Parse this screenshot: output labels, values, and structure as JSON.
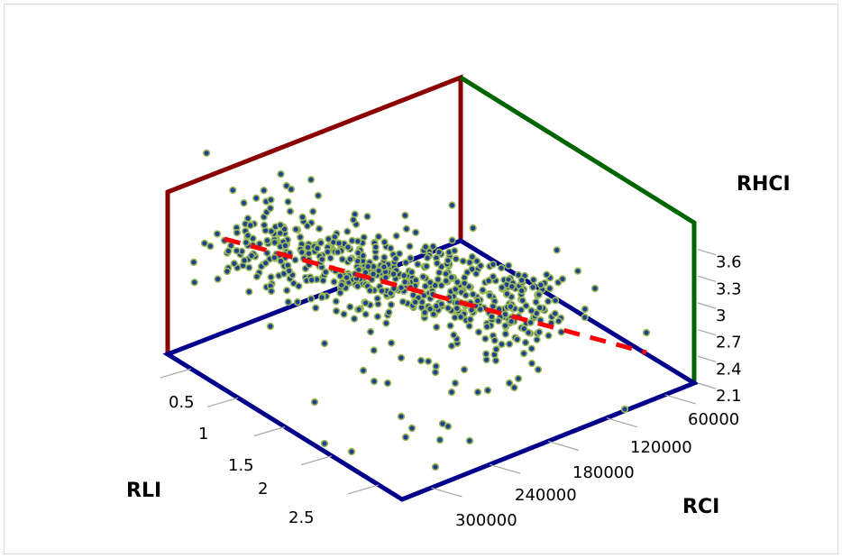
{
  "chart_data": {
    "type": "scatter",
    "axes": {
      "x": {
        "title": "RLI",
        "ticks": [
          "0.5",
          "1",
          "1.5",
          "2",
          "2.5"
        ],
        "range": [
          0.3,
          2.6
        ]
      },
      "y": {
        "title": "RCI",
        "ticks": [
          "60000",
          "120000",
          "180000",
          "240000",
          "300000"
        ],
        "range": [
          20000,
          320000
        ]
      },
      "z": {
        "title": "RHCI",
        "ticks": [
          "2.1",
          "2.4",
          "2.7",
          "3",
          "3.3",
          "3.6"
        ],
        "range": [
          2.1,
          3.9
        ]
      }
    },
    "trendline": {
      "style": "dashed",
      "color": "#ff0000"
    },
    "colors": {
      "left_wall": "#8b0000",
      "right_wall": "#006400",
      "floor": "#00008b",
      "point_fill": "#1f3f8f",
      "point_stroke": "#9bbb59",
      "tick_line": "#a6a6a6"
    },
    "points_note": "point cloud",
    "grid": false,
    "legend": "none"
  }
}
